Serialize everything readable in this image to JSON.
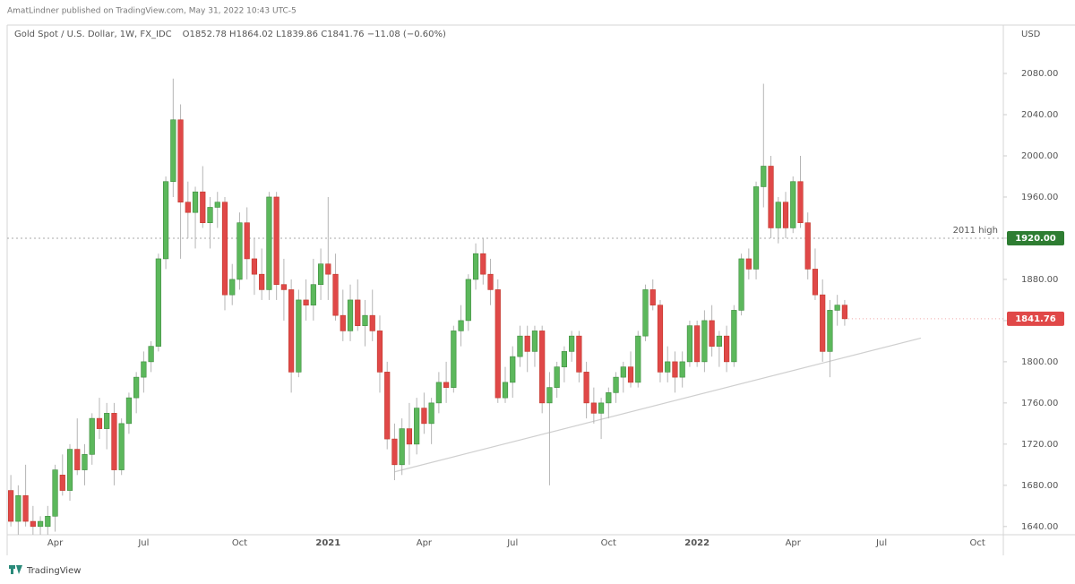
{
  "chart_data": {
    "type": "candlestick",
    "header": "AmatLindner published on TradingView.com, May 31, 2022 10:43 UTC-5",
    "title": "Gold Spot / U.S. Dollar, 1W, FX_IDC",
    "ohlc_legend": "O1852.78  H1864.02  L1839.86  C1841.76  −11.08 (−0.60%)",
    "y_axis_label": "USD",
    "footer": "TradingView",
    "up_color": "#5cb85c",
    "down_color": "#e04848",
    "ylim": [
      1632,
      2127
    ],
    "yticks": [
      {
        "value": 1640,
        "label": "1640.00"
      },
      {
        "value": 1680,
        "label": "1680.00"
      },
      {
        "value": 1720,
        "label": "1720.00"
      },
      {
        "value": 1760,
        "label": "1760.00"
      },
      {
        "value": 1800,
        "label": "1800.00"
      },
      {
        "value": 1840,
        "label": "1840.00"
      },
      {
        "value": 1880,
        "label": "1880.00"
      },
      {
        "value": 1920,
        "label": "1920.00"
      },
      {
        "value": 1960,
        "label": "1960.00"
      },
      {
        "value": 2000,
        "label": "2000.00"
      },
      {
        "value": 2040,
        "label": "2040.00"
      },
      {
        "value": 2080,
        "label": "2080.00"
      }
    ],
    "grid": false,
    "level": {
      "name": "2011 high",
      "value": 1920,
      "label": "1920.00",
      "color": "#2e7d32"
    },
    "trendline": [
      1693,
      1823
    ],
    "categories": [
      null,
      null,
      null,
      null,
      null,
      null,
      "Apr",
      null,
      null,
      null,
      null,
      null,
      null,
      null,
      null,
      null,
      null,
      null,
      "Jul",
      null,
      null,
      null,
      null,
      null,
      null,
      null,
      null,
      null,
      null,
      null,
      null,
      "Oct",
      null,
      null,
      null,
      null,
      null,
      null,
      null,
      null,
      null,
      null,
      null,
      "2021",
      null,
      null,
      null,
      null,
      null,
      null,
      null,
      null,
      null,
      null,
      null,
      null,
      "Apr",
      null,
      null,
      null,
      null,
      null,
      null,
      null,
      null,
      null,
      null,
      null,
      "Jul",
      null,
      null,
      null,
      null,
      null,
      null,
      null,
      null,
      null,
      null,
      null,
      null,
      "Oct",
      null,
      null,
      null,
      null,
      null,
      null,
      null,
      null,
      null,
      null,
      null,
      "2022",
      null,
      null,
      null,
      null,
      null,
      null,
      null,
      null,
      null,
      null,
      null,
      null,
      "Apr",
      null,
      null,
      null,
      null,
      null,
      null,
      null,
      null,
      null,
      null,
      null,
      "Jul",
      null,
      null,
      null,
      null,
      null,
      null,
      null,
      null,
      null,
      null,
      null,
      null,
      "Oct",
      null,
      null,
      null
    ],
    "open": [
      1675,
      1645,
      1670,
      1645,
      1640,
      1640,
      1650,
      1690,
      1675,
      1715,
      1695,
      1710,
      1745,
      1735,
      1750,
      1695,
      1740,
      1765,
      1785,
      1800,
      1815,
      1900,
      1975,
      2035,
      1955,
      1945,
      1965,
      1935,
      1950,
      1955,
      1865,
      1880,
      1935,
      1900,
      1885,
      1870,
      1960,
      1875,
      1870,
      1790,
      1860,
      1855,
      1875,
      1895,
      1885,
      1845,
      1830,
      1860,
      1835,
      1845,
      1830,
      1790,
      1725,
      1700,
      1735,
      1720,
      1755,
      1740,
      1760,
      1780,
      1775,
      1830,
      1840,
      1880,
      1905,
      1885,
      1870,
      1765,
      1780,
      1805,
      1825,
      1810,
      1830,
      1760,
      1775,
      1795,
      1810,
      1825,
      1790,
      1760,
      1750,
      1760,
      1770,
      1785,
      1795,
      1780,
      1825,
      1870,
      1855,
      1790,
      1800,
      1785,
      1800,
      1835,
      1800,
      1840,
      1815,
      1825,
      1800,
      1850,
      1900,
      1890,
      1970,
      1990,
      1930,
      1955,
      1930,
      1975,
      1935,
      1890,
      1865,
      1810,
      1850,
      1855,
      null,
      null,
      null,
      null,
      null,
      null,
      null,
      null,
      null,
      null,
      null,
      null,
      null,
      null,
      null,
      null,
      null,
      null,
      null,
      null,
      null
    ],
    "high": [
      1690,
      1680,
      1700,
      1660,
      1650,
      1660,
      1700,
      1710,
      1720,
      1745,
      1720,
      1750,
      1765,
      1760,
      1760,
      1745,
      1770,
      1790,
      1810,
      1820,
      1905,
      1980,
      2075,
      2050,
      1975,
      1970,
      1990,
      1960,
      1965,
      1960,
      1895,
      1945,
      1950,
      1920,
      1910,
      1965,
      1965,
      1900,
      1880,
      1870,
      1880,
      1900,
      1910,
      1960,
      1905,
      1870,
      1875,
      1880,
      1860,
      1870,
      1845,
      1800,
      1740,
      1745,
      1760,
      1765,
      1770,
      1765,
      1790,
      1800,
      1835,
      1855,
      1885,
      1915,
      1920,
      1900,
      1880,
      1795,
      1815,
      1835,
      1835,
      1835,
      1835,
      1790,
      1800,
      1815,
      1830,
      1830,
      1800,
      1775,
      1765,
      1775,
      1790,
      1800,
      1810,
      1830,
      1875,
      1880,
      1860,
      1815,
      1810,
      1810,
      1840,
      1840,
      1850,
      1855,
      1830,
      1835,
      1855,
      1905,
      1910,
      1975,
      2070,
      2000,
      1960,
      1965,
      1980,
      2000,
      1945,
      1910,
      1880,
      1860,
      1865,
      1860,
      null,
      null,
      null,
      null,
      null,
      null,
      null,
      null,
      null,
      null,
      null,
      null,
      null,
      null,
      null,
      null,
      null,
      null,
      null,
      null,
      null
    ],
    "low": [
      1640,
      1632,
      1640,
      1632,
      1632,
      1632,
      1635,
      1670,
      1665,
      1690,
      1680,
      1700,
      1725,
      1715,
      1680,
      1690,
      1730,
      1750,
      1770,
      1790,
      1810,
      1890,
      1960,
      1900,
      1920,
      1910,
      1930,
      1910,
      1930,
      1850,
      1855,
      1870,
      1880,
      1865,
      1860,
      1860,
      1860,
      1840,
      1770,
      1785,
      1840,
      1840,
      1860,
      1860,
      1840,
      1820,
      1820,
      1830,
      1815,
      1820,
      1770,
      1715,
      1685,
      1690,
      1700,
      1710,
      1730,
      1720,
      1750,
      1760,
      1770,
      1815,
      1830,
      1870,
      1875,
      1855,
      1760,
      1760,
      1765,
      1795,
      1790,
      1795,
      1750,
      1680,
      1765,
      1780,
      1800,
      1780,
      1745,
      1740,
      1725,
      1745,
      1760,
      1770,
      1775,
      1775,
      1820,
      1850,
      1780,
      1780,
      1770,
      1775,
      1795,
      1795,
      1790,
      1805,
      1795,
      1790,
      1795,
      1845,
      1880,
      1880,
      1950,
      1920,
      1915,
      1920,
      1925,
      1930,
      1880,
      1860,
      1800,
      1785,
      1835,
      1835,
      null,
      null,
      null,
      null,
      null,
      null,
      null,
      null,
      null,
      null,
      null,
      null,
      null,
      null,
      null,
      null,
      null,
      null,
      null,
      null,
      null
    ],
    "close": [
      1645,
      1670,
      1645,
      1640,
      1645,
      1650,
      1695,
      1675,
      1715,
      1695,
      1710,
      1745,
      1735,
      1750,
      1695,
      1740,
      1765,
      1785,
      1800,
      1815,
      1900,
      1975,
      2035,
      1955,
      1945,
      1965,
      1935,
      1950,
      1955,
      1865,
      1880,
      1935,
      1900,
      1885,
      1870,
      1960,
      1875,
      1870,
      1790,
      1860,
      1855,
      1875,
      1895,
      1885,
      1845,
      1830,
      1860,
      1835,
      1845,
      1830,
      1790,
      1725,
      1700,
      1735,
      1720,
      1755,
      1740,
      1760,
      1780,
      1775,
      1830,
      1840,
      1880,
      1905,
      1885,
      1870,
      1765,
      1780,
      1805,
      1825,
      1810,
      1830,
      1760,
      1775,
      1795,
      1810,
      1825,
      1790,
      1760,
      1750,
      1760,
      1770,
      1785,
      1795,
      1780,
      1825,
      1870,
      1855,
      1790,
      1800,
      1785,
      1800,
      1835,
      1800,
      1840,
      1815,
      1825,
      1800,
      1850,
      1900,
      1890,
      1970,
      1990,
      1930,
      1955,
      1930,
      1975,
      1935,
      1890,
      1865,
      1810,
      1850,
      1855,
      1841.76,
      null,
      null,
      null,
      null,
      null,
      null,
      null,
      null,
      null,
      null,
      null,
      null,
      null,
      null,
      null,
      null,
      null,
      null,
      null,
      null,
      null
    ]
  }
}
